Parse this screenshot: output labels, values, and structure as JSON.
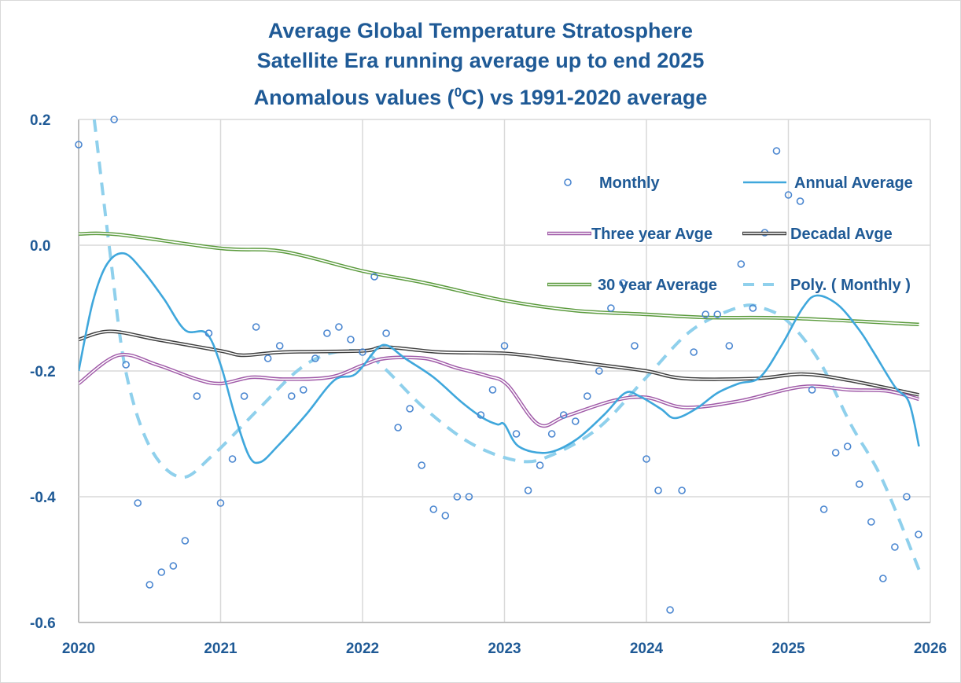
{
  "chart_data": {
    "type": "line",
    "title": [
      "Average Global Temperature Stratosphere",
      "Satellite Era running average up to end 2025",
      "Anomalous values (",
      "0",
      "C) vs 1991-2020 average"
    ],
    "xlim": [
      2020,
      2026
    ],
    "ylim": [
      -0.6,
      0.2
    ],
    "x_ticks": [
      "2020",
      "2021",
      "2022",
      "2023",
      "2024",
      "2025",
      "2026"
    ],
    "y_ticks": [
      "0.2",
      "0.0",
      "-0.2",
      "-0.4",
      "-0.6"
    ],
    "grid": true,
    "legend_placement": "top-right",
    "series": [
      {
        "name": "Monthly",
        "kind": "scatter",
        "color": "#4a86d0",
        "start": 2020.0,
        "step": "month",
        "values": [
          0.16,
          null,
          null,
          0.2,
          -0.19,
          -0.41,
          -0.54,
          -0.52,
          -0.51,
          -0.47,
          -0.24,
          -0.14,
          -0.41,
          -0.34,
          -0.24,
          -0.13,
          -0.18,
          -0.16,
          -0.24,
          -0.23,
          -0.18,
          -0.14,
          -0.13,
          -0.15,
          -0.17,
          -0.05,
          -0.14,
          -0.29,
          -0.26,
          -0.35,
          -0.42,
          -0.43,
          -0.4,
          -0.4,
          -0.27,
          -0.23,
          -0.16,
          -0.3,
          -0.39,
          -0.35,
          -0.3,
          -0.27,
          -0.28,
          -0.24,
          -0.2,
          -0.1,
          -0.06,
          -0.16,
          -0.34,
          -0.39,
          -0.58,
          -0.39,
          -0.17,
          -0.11,
          -0.11,
          -0.16,
          -0.03,
          -0.1,
          0.02,
          0.15,
          0.08,
          0.07,
          -0.23,
          -0.42,
          -0.33,
          -0.32,
          -0.38,
          -0.44,
          -0.53,
          -0.48,
          -0.4,
          -0.46
        ]
      },
      {
        "name": "Annual Average",
        "kind": "line",
        "color": "#3fa7dc",
        "points": [
          [
            2020.0,
            -0.2
          ],
          [
            2020.1,
            -0.09
          ],
          [
            2020.2,
            -0.03
          ],
          [
            2020.32,
            -0.013
          ],
          [
            2020.45,
            -0.04
          ],
          [
            2020.6,
            -0.085
          ],
          [
            2020.75,
            -0.135
          ],
          [
            2020.9,
            -0.14
          ],
          [
            2021.0,
            -0.19
          ],
          [
            2021.1,
            -0.27
          ],
          [
            2021.2,
            -0.335
          ],
          [
            2021.28,
            -0.345
          ],
          [
            2021.4,
            -0.32
          ],
          [
            2021.6,
            -0.27
          ],
          [
            2021.8,
            -0.215
          ],
          [
            2021.95,
            -0.205
          ],
          [
            2022.1,
            -0.165
          ],
          [
            2022.18,
            -0.16
          ],
          [
            2022.3,
            -0.18
          ],
          [
            2022.5,
            -0.21
          ],
          [
            2022.7,
            -0.25
          ],
          [
            2022.85,
            -0.275
          ],
          [
            2022.95,
            -0.285
          ],
          [
            2023.0,
            -0.285
          ],
          [
            2023.1,
            -0.32
          ],
          [
            2023.3,
            -0.33
          ],
          [
            2023.5,
            -0.31
          ],
          [
            2023.7,
            -0.27
          ],
          [
            2023.85,
            -0.235
          ],
          [
            2023.95,
            -0.24
          ],
          [
            2024.1,
            -0.26
          ],
          [
            2024.2,
            -0.275
          ],
          [
            2024.35,
            -0.26
          ],
          [
            2024.5,
            -0.235
          ],
          [
            2024.65,
            -0.22
          ],
          [
            2024.8,
            -0.21
          ],
          [
            2024.95,
            -0.16
          ],
          [
            2025.1,
            -0.1
          ],
          [
            2025.2,
            -0.08
          ],
          [
            2025.35,
            -0.095
          ],
          [
            2025.5,
            -0.135
          ],
          [
            2025.6,
            -0.17
          ],
          [
            2025.75,
            -0.225
          ],
          [
            2025.85,
            -0.25
          ],
          [
            2025.92,
            -0.32
          ]
        ]
      },
      {
        "name": "Three year Avge",
        "kind": "double-line",
        "color": "#a05aa8",
        "points": [
          [
            2020.0,
            -0.22
          ],
          [
            2020.28,
            -0.175
          ],
          [
            2020.55,
            -0.19
          ],
          [
            2020.83,
            -0.213
          ],
          [
            2021.0,
            -0.22
          ],
          [
            2021.22,
            -0.21
          ],
          [
            2021.44,
            -0.213
          ],
          [
            2021.77,
            -0.21
          ],
          [
            2022.0,
            -0.191
          ],
          [
            2022.16,
            -0.18
          ],
          [
            2022.44,
            -0.18
          ],
          [
            2022.66,
            -0.195
          ],
          [
            2022.88,
            -0.208
          ],
          [
            2023.02,
            -0.222
          ],
          [
            2023.24,
            -0.285
          ],
          [
            2023.43,
            -0.272
          ],
          [
            2023.77,
            -0.247
          ],
          [
            2024.0,
            -0.242
          ],
          [
            2024.27,
            -0.258
          ],
          [
            2024.65,
            -0.248
          ],
          [
            2025.1,
            -0.225
          ],
          [
            2025.43,
            -0.23
          ],
          [
            2025.7,
            -0.232
          ],
          [
            2025.92,
            -0.245
          ]
        ]
      },
      {
        "name": "Decadal Avge",
        "kind": "double-line",
        "color": "#404040",
        "points": [
          [
            2020.0,
            -0.15
          ],
          [
            2020.22,
            -0.137
          ],
          [
            2020.55,
            -0.15
          ],
          [
            2021.0,
            -0.168
          ],
          [
            2021.16,
            -0.175
          ],
          [
            2021.44,
            -0.17
          ],
          [
            2022.0,
            -0.168
          ],
          [
            2022.16,
            -0.162
          ],
          [
            2022.55,
            -0.17
          ],
          [
            2023.0,
            -0.172
          ],
          [
            2023.32,
            -0.18
          ],
          [
            2023.66,
            -0.19
          ],
          [
            2024.0,
            -0.2
          ],
          [
            2024.27,
            -0.212
          ],
          [
            2024.77,
            -0.212
          ],
          [
            2025.1,
            -0.205
          ],
          [
            2025.43,
            -0.215
          ],
          [
            2025.92,
            -0.238
          ]
        ]
      },
      {
        "name": "30 year Average",
        "kind": "double-line",
        "color": "#5a9a3c",
        "points": [
          [
            2020.0,
            0.018
          ],
          [
            2020.28,
            0.017
          ],
          [
            2021.0,
            -0.005
          ],
          [
            2021.44,
            -0.01
          ],
          [
            2022.0,
            -0.041
          ],
          [
            2022.44,
            -0.06
          ],
          [
            2023.0,
            -0.088
          ],
          [
            2023.5,
            -0.104
          ],
          [
            2024.0,
            -0.11
          ],
          [
            2024.43,
            -0.115
          ],
          [
            2025.0,
            -0.116
          ],
          [
            2025.92,
            -0.126
          ]
        ]
      },
      {
        "name": "Poly. ( Monthly )",
        "kind": "dashed-line",
        "color": "#8fd0ec",
        "points": [
          [
            2020.11,
            0.2
          ],
          [
            2020.22,
            -0.01
          ],
          [
            2020.33,
            -0.198
          ],
          [
            2020.5,
            -0.32
          ],
          [
            2020.72,
            -0.369
          ],
          [
            2020.94,
            -0.335
          ],
          [
            2021.27,
            -0.26
          ],
          [
            2021.55,
            -0.198
          ],
          [
            2021.77,
            -0.172
          ],
          [
            2022.0,
            -0.17
          ],
          [
            2022.16,
            -0.197
          ],
          [
            2022.44,
            -0.26
          ],
          [
            2022.77,
            -0.316
          ],
          [
            2023.1,
            -0.343
          ],
          [
            2023.32,
            -0.335
          ],
          [
            2023.66,
            -0.291
          ],
          [
            2024.0,
            -0.21
          ],
          [
            2024.32,
            -0.135
          ],
          [
            2024.66,
            -0.098
          ],
          [
            2024.82,
            -0.1
          ],
          [
            2025.0,
            -0.122
          ],
          [
            2025.22,
            -0.185
          ],
          [
            2025.44,
            -0.285
          ],
          [
            2025.66,
            -0.372
          ],
          [
            2025.92,
            -0.516
          ]
        ]
      }
    ]
  }
}
